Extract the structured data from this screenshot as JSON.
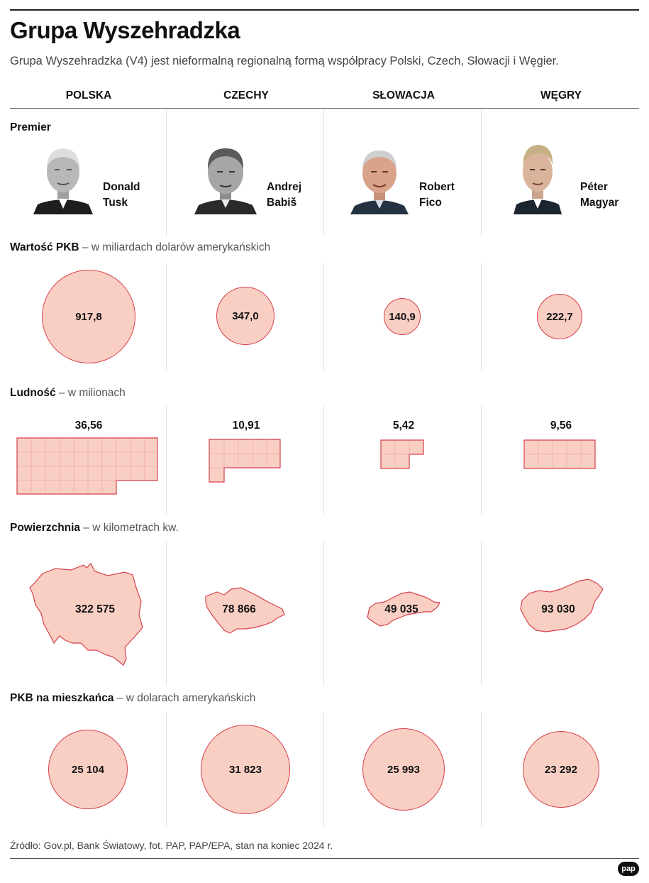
{
  "title": "Grupa Wyszehradzka",
  "subtitle": "Grupa Wyszehradzka (V4) jest nieformalną regionalną formą współpracy Polski, Czech, Słowacji i Węgier.",
  "countries": [
    {
      "name": "POLSKA",
      "premier_first": "Donald",
      "premier_last": "Tusk",
      "pkb": "917,8",
      "ludnosc": "36,56",
      "powierzchnia": "322 575",
      "pkb_per_capita": "25 104"
    },
    {
      "name": "CZECHY",
      "premier_first": "Andrej",
      "premier_last": "Babiš",
      "pkb": "347,0",
      "ludnosc": "10,91",
      "powierzchnia": "78 866",
      "pkb_per_capita": "31 823"
    },
    {
      "name": "SŁOWACJA",
      "premier_first": "Robert",
      "premier_last": "Fico",
      "pkb": "140,9",
      "ludnosc": "5,42",
      "powierzchnia": "49 035",
      "pkb_per_capita": "25 993"
    },
    {
      "name": "WĘGRY",
      "premier_first": "Péter",
      "premier_last": "Magyar",
      "pkb": "222,7",
      "ludnosc": "9,56",
      "powierzchnia": "93 030",
      "pkb_per_capita": "23 292"
    }
  ],
  "sections": {
    "premier": {
      "bold": "Premier",
      "rest": ""
    },
    "pkb": {
      "bold": "Wartość PKB",
      "rest": " – w miliardach dolarów amerykańskich"
    },
    "ludnosc": {
      "bold": "Ludność",
      "rest": " – w milionach"
    },
    "powierzchnia": {
      "bold": "Powierzchnia",
      "rest": " – w kilometrach kw."
    },
    "pkb_per_capita": {
      "bold": "PKB na mieszkańca",
      "rest": " – w dolarach amerykańskich"
    }
  },
  "source": "Źródło: Gov.pl, Bank Światowy, fot. PAP, PAP/EPA, stan na koniec 2024 r.",
  "logo": "pap",
  "colors": {
    "fill": "#f9cfc4",
    "stroke": "#d6404b"
  }
}
